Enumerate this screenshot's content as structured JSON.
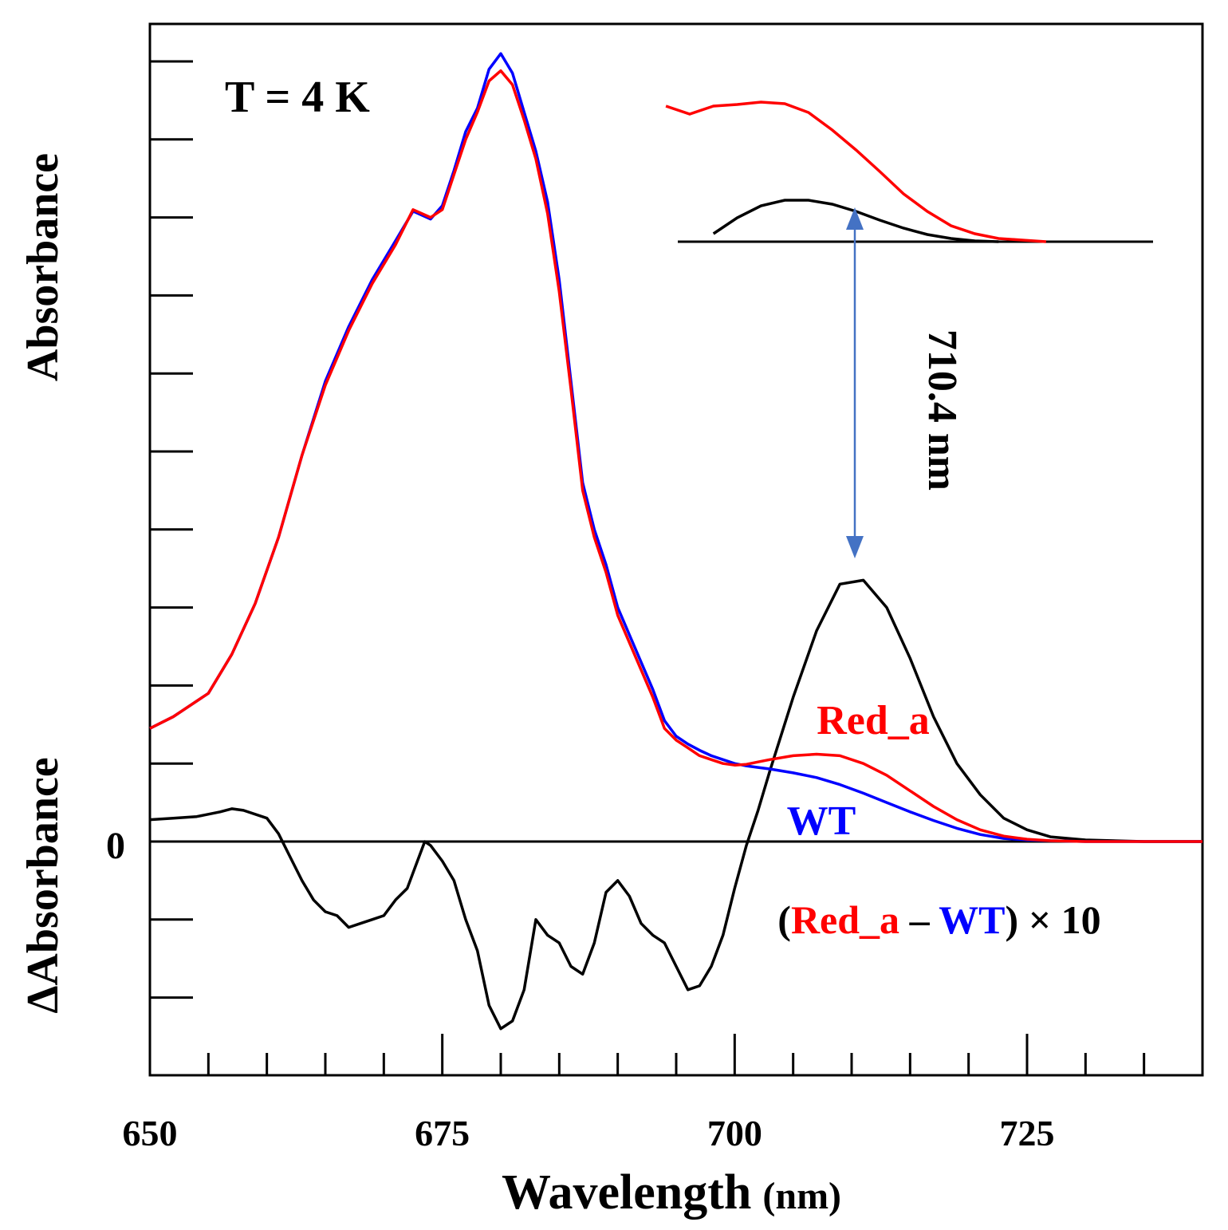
{
  "chart_data": {
    "type": "line",
    "annotation_temperature": "T = 4 K",
    "xlabel_main": "Wavelength",
    "xlabel_unit": "(nm)",
    "ylabel_top": "Absorbance",
    "ylabel_bottom": "ΔAbsorbance",
    "zero_label": "0",
    "peak_label": "710.4 nm",
    "peak_wavelength": 710.4,
    "xlim": [
      650,
      740
    ],
    "ylim": [
      -3.0,
      10.2
    ],
    "x_ticks": [
      650,
      675,
      700,
      725
    ],
    "x_minor_step": 5,
    "y_ticks": [
      -2,
      -1,
      0,
      1,
      2,
      3,
      4,
      5,
      6,
      7,
      8,
      9,
      10
    ],
    "legend": {
      "red_label": "Red_a",
      "blue_label": "WT",
      "difference_open": "(",
      "difference_red": "Red_a",
      "difference_minus": " – ",
      "difference_blue": "WT",
      "difference_close": ")",
      "difference_factor": " × 10"
    },
    "colors": {
      "red": "#ff0000",
      "blue": "#0000ff",
      "black": "#000000",
      "arrow": "#4472c4"
    },
    "series": [
      {
        "name": "WT",
        "color": "#0000ff",
        "x": [
          650,
          652,
          655,
          657,
          659,
          661,
          663,
          665,
          667,
          669,
          671,
          672.5,
          674,
          675,
          676,
          677,
          678,
          679,
          680,
          681,
          682,
          683,
          684,
          685,
          686,
          687,
          688,
          689,
          690,
          691,
          692,
          693,
          694,
          695,
          696,
          697,
          698,
          699,
          700,
          701,
          702,
          703,
          705,
          707,
          709,
          711,
          713,
          715,
          717,
          719,
          721,
          723,
          725,
          727,
          730,
          735,
          740
        ],
        "y": [
          1.45,
          1.6,
          1.9,
          2.4,
          3.05,
          3.9,
          4.95,
          5.9,
          6.6,
          7.2,
          7.7,
          8.08,
          7.98,
          8.15,
          8.6,
          9.1,
          9.4,
          9.9,
          10.1,
          9.85,
          9.35,
          8.85,
          8.2,
          7.2,
          5.9,
          4.6,
          4.0,
          3.55,
          3.0,
          2.65,
          2.3,
          1.95,
          1.55,
          1.35,
          1.25,
          1.17,
          1.1,
          1.05,
          1.0,
          0.97,
          0.95,
          0.93,
          0.88,
          0.82,
          0.73,
          0.62,
          0.5,
          0.38,
          0.27,
          0.17,
          0.09,
          0.04,
          0.02,
          0.01,
          0.0,
          0.0,
          0.0
        ]
      },
      {
        "name": "Red_a",
        "color": "#ff0000",
        "x": [
          650,
          652,
          655,
          657,
          659,
          661,
          663,
          665,
          667,
          669,
          671,
          672.5,
          674,
          675,
          676,
          677,
          678,
          679,
          680,
          681,
          682,
          683,
          684,
          685,
          686,
          687,
          688,
          689,
          690,
          691,
          692,
          693,
          694,
          695,
          696,
          697,
          698,
          699,
          700,
          701,
          702,
          703,
          705,
          707,
          709,
          711,
          713,
          715,
          717,
          719,
          721,
          723,
          725,
          727,
          730,
          735,
          740
        ],
        "y": [
          1.45,
          1.6,
          1.9,
          2.4,
          3.05,
          3.9,
          4.95,
          5.85,
          6.55,
          7.15,
          7.65,
          8.1,
          8.0,
          8.1,
          8.55,
          9.0,
          9.35,
          9.75,
          9.88,
          9.7,
          9.25,
          8.75,
          8.05,
          7.05,
          5.8,
          4.5,
          3.9,
          3.45,
          2.9,
          2.55,
          2.2,
          1.85,
          1.45,
          1.3,
          1.2,
          1.1,
          1.05,
          1.0,
          0.98,
          0.99,
          1.02,
          1.05,
          1.1,
          1.12,
          1.1,
          1.0,
          0.85,
          0.65,
          0.45,
          0.28,
          0.15,
          0.07,
          0.03,
          0.01,
          0.0,
          0.0,
          0.0
        ]
      },
      {
        "name": "(Red_a – WT) × 10",
        "color": "#000000",
        "x": [
          650,
          652,
          654,
          656,
          657,
          658,
          660,
          661,
          662,
          663,
          664,
          665,
          666,
          667,
          668,
          669,
          670,
          671,
          672,
          673,
          673.5,
          674,
          675,
          676,
          677,
          678,
          679,
          680,
          681,
          682,
          683,
          684,
          685,
          686,
          687,
          688,
          689,
          690,
          691,
          692,
          693,
          694,
          695,
          696,
          697,
          698,
          699,
          700,
          701,
          702,
          703,
          705,
          707,
          709,
          711,
          713,
          715,
          717,
          719,
          721,
          723,
          725,
          727,
          730,
          735,
          740
        ],
        "y": [
          0.28,
          0.3,
          0.32,
          0.38,
          0.42,
          0.4,
          0.3,
          0.1,
          -0.2,
          -0.5,
          -0.75,
          -0.9,
          -0.95,
          -1.1,
          -1.05,
          -1.0,
          -0.95,
          -0.75,
          -0.6,
          -0.2,
          0.0,
          -0.05,
          -0.25,
          -0.5,
          -1.0,
          -1.4,
          -2.1,
          -2.4,
          -2.3,
          -1.9,
          -1.0,
          -1.2,
          -1.3,
          -1.6,
          -1.7,
          -1.3,
          -0.65,
          -0.5,
          -0.7,
          -1.05,
          -1.2,
          -1.3,
          -1.6,
          -1.9,
          -1.85,
          -1.6,
          -1.2,
          -0.6,
          -0.05,
          0.4,
          0.9,
          1.85,
          2.7,
          3.3,
          3.35,
          3.0,
          2.35,
          1.6,
          1.0,
          0.6,
          0.3,
          0.15,
          0.06,
          0.02,
          0.0,
          0.0
        ]
      }
    ],
    "inset": {
      "description": "magnified",
      "baseline_x": [
        700,
        740
      ],
      "red_x": [
        699,
        701,
        703,
        705,
        707,
        709,
        711,
        713,
        715,
        717,
        719,
        721,
        723,
        725,
        727,
        729,
        731
      ],
      "red_y": [
        1.7,
        1.6,
        1.7,
        1.72,
        1.75,
        1.73,
        1.62,
        1.4,
        1.15,
        0.88,
        0.6,
        0.38,
        0.2,
        0.1,
        0.04,
        0.02,
        0.0
      ],
      "black_x": [
        703,
        705,
        707,
        709,
        711,
        713,
        715,
        717,
        719,
        721,
        723,
        725,
        727
      ],
      "black_y": [
        0.1,
        0.3,
        0.45,
        0.52,
        0.52,
        0.47,
        0.38,
        0.27,
        0.17,
        0.09,
        0.04,
        0.01,
        0.0
      ]
    }
  }
}
